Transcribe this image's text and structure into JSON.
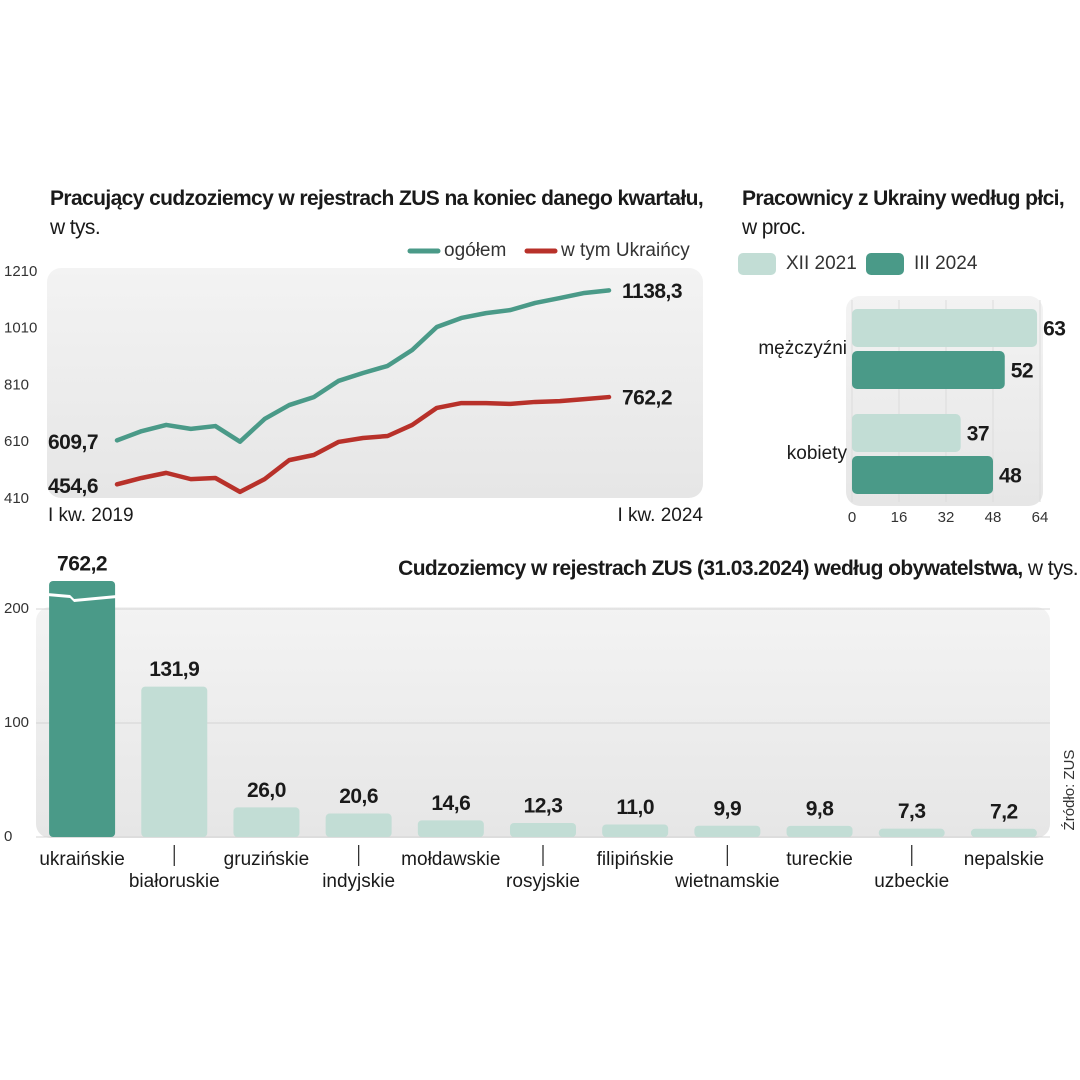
{
  "chart_data": [
    {
      "type": "line",
      "title": "Pracujący cudzoziemcy w rejestrach ZUS na koniec danego kwartału,",
      "subtitle": "w tys.",
      "categories": [
        "I kw. 2019",
        null,
        null,
        null,
        null,
        null,
        null,
        null,
        null,
        null,
        null,
        null,
        null,
        null,
        null,
        null,
        null,
        null,
        null,
        null,
        "I kw. 2024"
      ],
      "series": [
        {
          "name": "ogółem",
          "color": "#4a9a88",
          "values": [
            609.7,
            642,
            664,
            650,
            660,
            605,
            685,
            734,
            762,
            819,
            847,
            872,
            928,
            1009,
            1041,
            1058,
            1069,
            1094,
            1111,
            1129,
            1138.3
          ],
          "value_labels": [
            "609,7",
            null,
            null,
            null,
            null,
            null,
            null,
            null,
            null,
            null,
            null,
            null,
            null,
            null,
            null,
            null,
            null,
            null,
            null,
            null,
            "1138,3"
          ]
        },
        {
          "name": "w tym Ukraińcy",
          "color": "#b8312a",
          "values": [
            454.6,
            477,
            495,
            473,
            477,
            428,
            473,
            540,
            558,
            604,
            618,
            625,
            664,
            724,
            741,
            741,
            738,
            745,
            748,
            755,
            762.2
          ],
          "value_labels": [
            "454,6",
            null,
            null,
            null,
            null,
            null,
            null,
            null,
            null,
            null,
            null,
            null,
            null,
            null,
            null,
            null,
            null,
            null,
            null,
            null,
            "762,2"
          ]
        }
      ],
      "ylim": [
        410,
        1210
      ],
      "yticks": [
        410,
        610,
        810,
        1010,
        1210
      ],
      "grid": false,
      "legend": "upper right"
    },
    {
      "type": "hbar",
      "title": "Pracownicy z Ukrainy według płci,",
      "subtitle": "w proc.",
      "categories": [
        "mężczyźni",
        "kobiety"
      ],
      "series": [
        {
          "name": "XII 2021",
          "color": "#c2ddd5",
          "values": [
            63,
            37
          ]
        },
        {
          "name": "III 2024",
          "color": "#4a9a88",
          "values": [
            52,
            48
          ]
        }
      ],
      "xlim": [
        0,
        64
      ],
      "xticks": [
        0,
        16,
        32,
        48,
        64
      ],
      "grid": true,
      "legend": "upper left"
    },
    {
      "type": "bar",
      "title": "Cudzoziemcy w rejestrach ZUS (31.03.2024) według obywatelstwa,",
      "subtitle": "w tys.",
      "categories": [
        "ukraińskie",
        "białoruskie",
        "gruzińskie",
        "indyjskie",
        "mołdawskie",
        "rosyjskie",
        "filipińskie",
        "wietnamskie",
        "tureckie",
        "uzbeckie",
        "nepalskie"
      ],
      "values": [
        762.2,
        131.9,
        26.0,
        20.6,
        14.6,
        12.3,
        11.0,
        9.9,
        9.8,
        7.3,
        7.2
      ],
      "value_labels": [
        "762,2",
        "131,9",
        "26,0",
        "20,6",
        "14,6",
        "12,3",
        "11,0",
        "9,9",
        "9,8",
        "7,3",
        "7,2"
      ],
      "colors": [
        "#4a9a88",
        "#c2ddd5",
        "#c2ddd5",
        "#c2ddd5",
        "#c2ddd5",
        "#c2ddd5",
        "#c2ddd5",
        "#c2ddd5",
        "#c2ddd5",
        "#c2ddd5",
        "#c2ddd5"
      ],
      "ylim": [
        0,
        200
      ],
      "yticks": [
        0,
        100,
        200
      ],
      "grid": true,
      "source": "Źródło: ZUS"
    }
  ]
}
